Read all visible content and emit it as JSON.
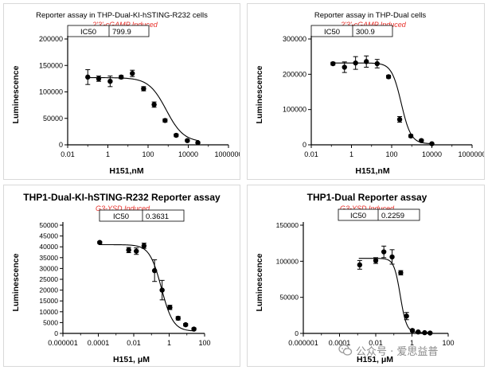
{
  "chart_data": [
    {
      "type": "scatter",
      "title": "Reporter assay in THP-Dual-KI-hSTING-R232 cells",
      "subtitle": "2'3'-cGAMP Induced",
      "xlabel": "H151,nM",
      "ylabel": "Luminescence",
      "x_scale": "log",
      "xlim": [
        0.01,
        1000000
      ],
      "ylim": [
        0,
        200000
      ],
      "x_ticks": [
        "0.01",
        "1",
        "100",
        "10000",
        "1000000"
      ],
      "y_ticks": [
        "0",
        "50000",
        "100000",
        "150000",
        "200000"
      ],
      "ic50_label": "IC50",
      "ic50_value": "799.9",
      "ic50_numeric": 799.9,
      "fit": {
        "top": 127000,
        "bottom": 5000,
        "hill": 1.0
      },
      "series": [
        {
          "x": [
            0.1,
            0.35,
            1.3,
            4.6,
            16.5,
            60,
            200,
            700,
            2500,
            9000,
            30000
          ],
          "y": [
            128000,
            125000,
            120000,
            128000,
            135000,
            106000,
            76000,
            46000,
            18000,
            8000,
            4000
          ],
          "err": [
            14000,
            5000,
            10000,
            3000,
            6000,
            4000,
            5000,
            3000,
            2500,
            2000,
            1500
          ]
        }
      ]
    },
    {
      "type": "scatter",
      "title": "Reporter assay in THP-Dual cells",
      "subtitle": "2'3'-cGAMP Induced",
      "xlabel": "H151,nM",
      "ylabel": "Luminescence",
      "x_scale": "log",
      "xlim": [
        0.01,
        1000000
      ],
      "ylim": [
        0,
        300000
      ],
      "x_ticks": [
        "0.01",
        "1",
        "100",
        "10000",
        "1000000"
      ],
      "y_ticks": [
        "0",
        "100000",
        "200000",
        "300000"
      ],
      "ic50_label": "IC50",
      "ic50_value": "300.9",
      "ic50_numeric": 300.9,
      "fit": {
        "top": 232000,
        "bottom": 3000,
        "hill": 1.8
      },
      "series": [
        {
          "x": [
            0.12,
            0.45,
            1.6,
            5.5,
            19,
            70,
            250,
            900,
            3000,
            10000
          ],
          "y": [
            230000,
            220000,
            232000,
            236000,
            230000,
            193000,
            72000,
            25000,
            12000,
            3000
          ],
          "err": [
            4000,
            15000,
            18000,
            16000,
            12000,
            4000,
            8000,
            4000,
            3000,
            1500
          ]
        }
      ]
    },
    {
      "type": "scatter",
      "title": "THP1-Dual-KI-hSTING-R232 Reporter assay",
      "subtitle": "G3-YSD Induced",
      "xlabel": "H151, μM",
      "ylabel": "Luminescence",
      "x_scale": "log",
      "xlim": [
        1e-06,
        100
      ],
      "ylim": [
        0,
        50000
      ],
      "x_ticks": [
        "0.000001",
        "0.0001",
        "0.01",
        "1",
        "100"
      ],
      "y_ticks": [
        "0",
        "5000",
        "10000",
        "15000",
        "20000",
        "25000",
        "30000",
        "35000",
        "40000",
        "45000",
        "50000"
      ],
      "ic50_label": "IC50",
      "ic50_value": "0.3631",
      "ic50_numeric": 0.3631,
      "fit": {
        "top": 41000,
        "bottom": 1000,
        "hill": 1.3
      },
      "series": [
        {
          "x": [
            0.00012,
            0.0052,
            0.014,
            0.038,
            0.15,
            0.4,
            1.1,
            3.2,
            8.5,
            25
          ],
          "y": [
            42000,
            38500,
            38000,
            40500,
            29000,
            20000,
            12000,
            7000,
            4000,
            2000
          ],
          "err": [
            500,
            1200,
            1500,
            1200,
            5000,
            4500,
            1000,
            800,
            600,
            500
          ]
        }
      ]
    },
    {
      "type": "scatter",
      "title": "THP1-Dual Reporter assay",
      "subtitle": "G3-YSD Induced",
      "xlabel": "H151, μM",
      "ylabel": "Luminescence",
      "x_scale": "log",
      "xlim": [
        1e-06,
        100
      ],
      "ylim": [
        0,
        150000
      ],
      "x_ticks": [
        "0.000001",
        "0.0001",
        "0.01",
        "1",
        "100"
      ],
      "y_ticks": [
        "0",
        "50000",
        "100000",
        "150000"
      ],
      "ic50_label": "IC50",
      "ic50_value": "0.2259",
      "ic50_numeric": 0.2259,
      "fit": {
        "top": 104000,
        "bottom": 1000,
        "hill": 2.5
      },
      "series": [
        {
          "x": [
            0.0013,
            0.01,
            0.028,
            0.08,
            0.24,
            0.5,
            1.05,
            2.2,
            5,
            10
          ],
          "y": [
            95000,
            101000,
            113000,
            106000,
            84000,
            24000,
            4000,
            2000,
            1000,
            500
          ],
          "err": [
            6000,
            4000,
            8000,
            10000,
            3000,
            5000,
            1500,
            500,
            400,
            300
          ]
        }
      ]
    }
  ],
  "watermark": {
    "text": "公众号 · 爱思益普"
  }
}
